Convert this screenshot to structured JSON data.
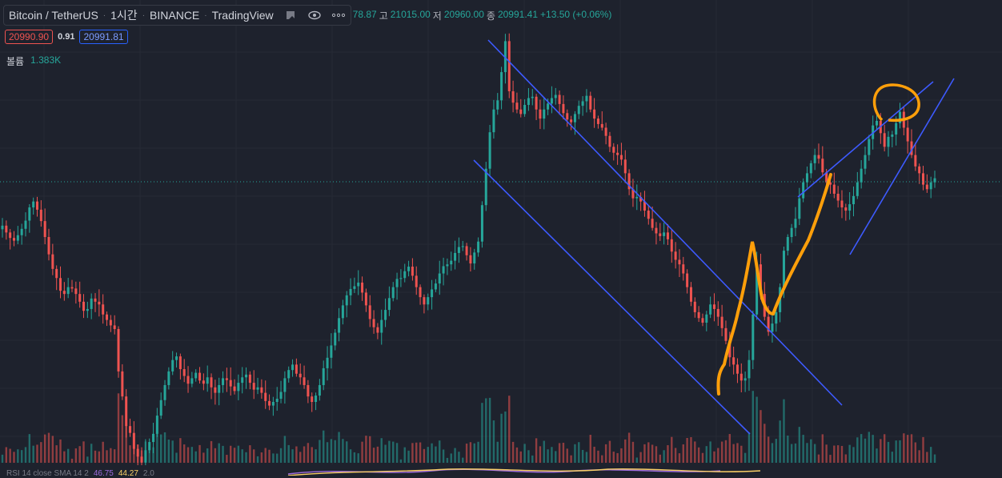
{
  "header": {
    "symbol": "Bitcoin / TetherUS",
    "interval": "1시간",
    "exchange": "BINANCE",
    "source": "TradingView",
    "ohlc": {
      "open_partial": "78.87",
      "high_label": "고",
      "high": "21015.00",
      "low_label": "저",
      "low": "20960.00",
      "close_label": "종",
      "close": "20991.41",
      "change": "+13.50 (+0.06%)"
    }
  },
  "prices": {
    "bid": "20990.90",
    "spread": "0.91",
    "ask": "20991.81"
  },
  "volume": {
    "label": "볼륨",
    "value": "1.383K"
  },
  "rsi": {
    "label": "RSI 14 close SMA 14 2",
    "v1": "46.75",
    "v2": "44.27",
    "v3": "2.0"
  },
  "colors": {
    "background": "#1e222d",
    "up": "#26a69a",
    "down": "#ef5350",
    "trendline": "#3d5afe",
    "drawing": "#ff9f0a",
    "current_price_line": "#26a69a"
  },
  "chart_data": {
    "type": "candlestick",
    "interval": "1h",
    "symbol": "BTCUSDT",
    "current_price": 20991.41,
    "candles_close": [
      20895,
      20880,
      20868,
      20862,
      20874,
      20888,
      20906,
      20935,
      20948,
      20930,
      20905,
      20870,
      20832,
      20800,
      20780,
      20752,
      20745,
      20760,
      20757,
      20745,
      20728,
      20708,
      20712,
      20735,
      20728,
      20722,
      20700,
      20688,
      20676,
      20668,
      20575,
      20520,
      20455,
      20440,
      20405,
      20388,
      20375,
      20402,
      20420,
      20438,
      20478,
      20512,
      20545,
      20575,
      20600,
      20608,
      20580,
      20565,
      20548,
      20560,
      20572,
      20555,
      20548,
      20562,
      20540,
      20528,
      20545,
      20560,
      20556,
      20542,
      20532,
      20550,
      20562,
      20568,
      20550,
      20535,
      20540,
      20528,
      20510,
      20500,
      20508,
      20515,
      20530,
      20560,
      20578,
      20590,
      20570,
      20562,
      20545,
      20520,
      20508,
      20522,
      20545,
      20582,
      20605,
      20632,
      20660,
      20692,
      20720,
      20742,
      20756,
      20762,
      20770,
      20748,
      20720,
      20690,
      20672,
      20660,
      20688,
      20710,
      20736,
      20760,
      20778,
      20780,
      20795,
      20805,
      20785,
      20760,
      20738,
      20722,
      20738,
      20755,
      20768,
      20790,
      20806,
      20810,
      20818,
      20835,
      20848,
      20850,
      20830,
      20812,
      20836,
      20860,
      20940,
      21020,
      21100,
      21150,
      21170,
      21232,
      21300,
      21190,
      21165,
      21150,
      21140,
      21160,
      21175,
      21178,
      21150,
      21130,
      21150,
      21163,
      21175,
      21182,
      21162,
      21142,
      21128,
      21122,
      21140,
      21158,
      21168,
      21180,
      21150,
      21130,
      21118,
      21110,
      21092,
      21068,
      21055,
      21050,
      21040,
      21010,
      20975,
      20955,
      20958,
      20948,
      20928,
      20910,
      20890,
      20878,
      20872,
      20880,
      20865,
      20838,
      20820,
      20810,
      20790,
      20760,
      20728,
      20705,
      20692,
      20682,
      20700,
      20722,
      20712,
      20695,
      20670,
      20642,
      20606,
      20590,
      20570,
      20555,
      20560,
      20600,
      20700,
      20810,
      20745,
      20695,
      20662,
      20680,
      20705,
      20760,
      20840,
      20870,
      20890,
      20910,
      20955,
      20990,
      21010,
      21032,
      21050,
      21042,
      21012,
      20990,
      20985,
      20965,
      20950,
      20935,
      20928,
      20942,
      20960,
      20990,
      21020,
      21050,
      21085,
      21115,
      21125,
      21098,
      21068,
      21090,
      21095,
      21120,
      21145,
      21110,
      21080,
      21050,
      21025,
      21010,
      20985,
      20975,
      20990,
      20999
    ],
    "ylim": [
      20450,
      21320
    ],
    "price_scale_hidden": true
  }
}
